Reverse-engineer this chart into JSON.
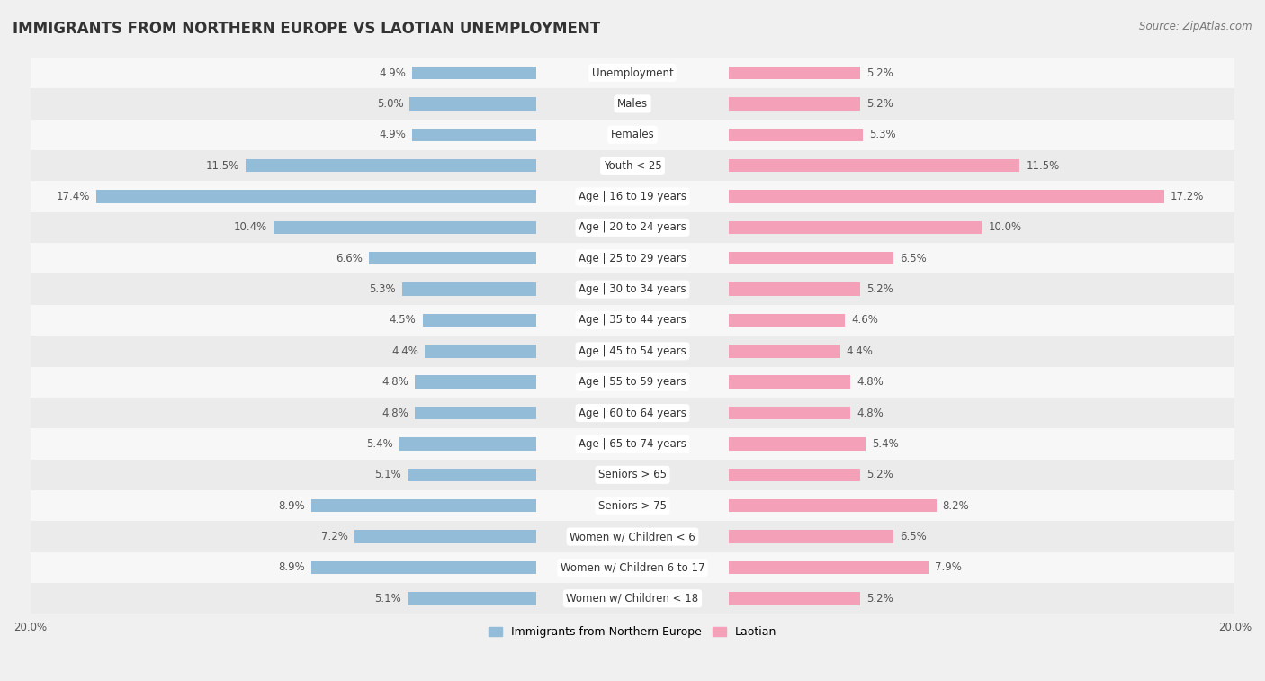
{
  "title": "IMMIGRANTS FROM NORTHERN EUROPE VS LAOTIAN UNEMPLOYMENT",
  "source": "Source: ZipAtlas.com",
  "categories": [
    "Unemployment",
    "Males",
    "Females",
    "Youth < 25",
    "Age | 16 to 19 years",
    "Age | 20 to 24 years",
    "Age | 25 to 29 years",
    "Age | 30 to 34 years",
    "Age | 35 to 44 years",
    "Age | 45 to 54 years",
    "Age | 55 to 59 years",
    "Age | 60 to 64 years",
    "Age | 65 to 74 years",
    "Seniors > 65",
    "Seniors > 75",
    "Women w/ Children < 6",
    "Women w/ Children 6 to 17",
    "Women w/ Children < 18"
  ],
  "left_values": [
    4.9,
    5.0,
    4.9,
    11.5,
    17.4,
    10.4,
    6.6,
    5.3,
    4.5,
    4.4,
    4.8,
    4.8,
    5.4,
    5.1,
    8.9,
    7.2,
    8.9,
    5.1
  ],
  "right_values": [
    5.2,
    5.2,
    5.3,
    11.5,
    17.2,
    10.0,
    6.5,
    5.2,
    4.6,
    4.4,
    4.8,
    4.8,
    5.4,
    5.2,
    8.2,
    6.5,
    7.9,
    5.2
  ],
  "left_color": "#92bcd8",
  "right_color": "#f4a0b8",
  "left_label": "Immigrants from Northern Europe",
  "right_label": "Laotian",
  "axis_max": 20.0,
  "row_bg_odd": "#f5f5f5",
  "row_bg_even": "#e8e8e8",
  "background_color": "#f0f0f0",
  "title_fontsize": 12,
  "source_fontsize": 8.5,
  "cat_fontsize": 8.5,
  "value_fontsize": 8.5,
  "legend_fontsize": 9
}
